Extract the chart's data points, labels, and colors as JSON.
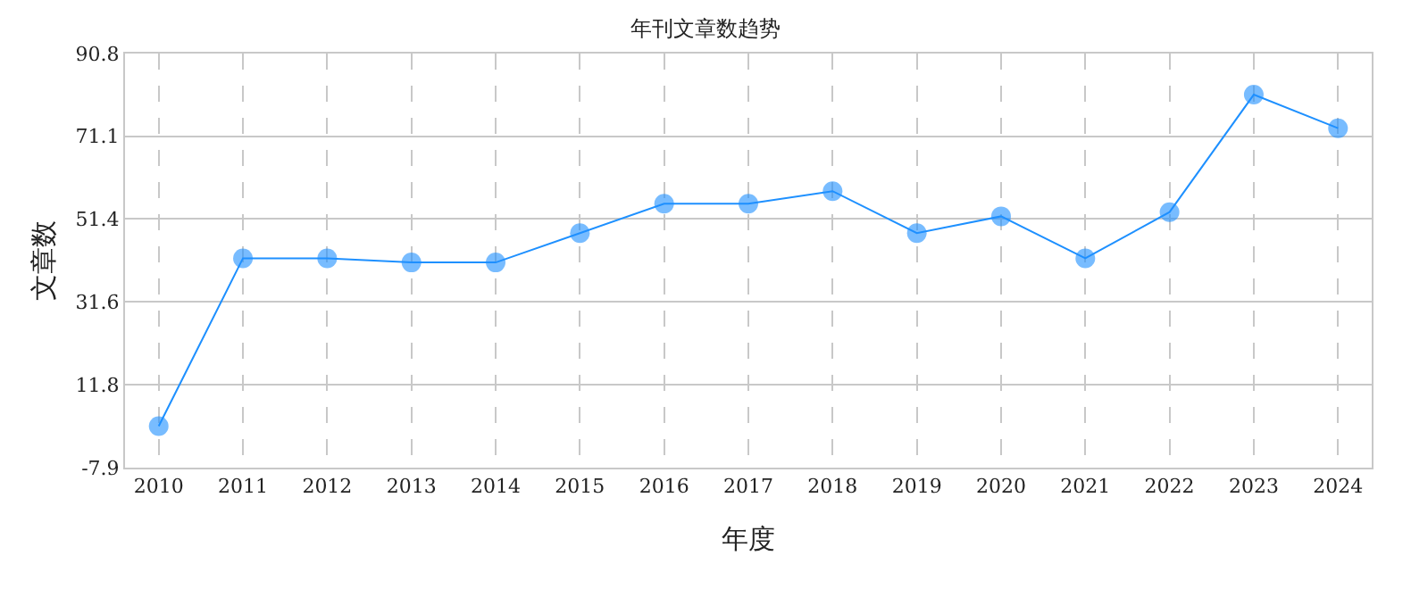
{
  "chart_data": {
    "type": "line",
    "title": "年刊文章数趋势",
    "xlabel": "年度",
    "ylabel": "文章数",
    "categories": [
      "2010",
      "2011",
      "2012",
      "2013",
      "2014",
      "2015",
      "2016",
      "2017",
      "2018",
      "2019",
      "2020",
      "2021",
      "2022",
      "2023",
      "2024"
    ],
    "series": [
      {
        "color": "#1e90ff",
        "values": [
          2,
          42,
          42,
          41,
          41,
          48,
          55,
          55,
          58,
          48,
          52,
          42,
          53,
          81,
          73
        ]
      }
    ],
    "ylim": [
      -7.9,
      90.8
    ],
    "yticks": [
      -7.9,
      11.8,
      31.6,
      51.4,
      71.1,
      90.8
    ],
    "grid": true,
    "marker": "circle",
    "line_style": "solid",
    "legend": false
  }
}
